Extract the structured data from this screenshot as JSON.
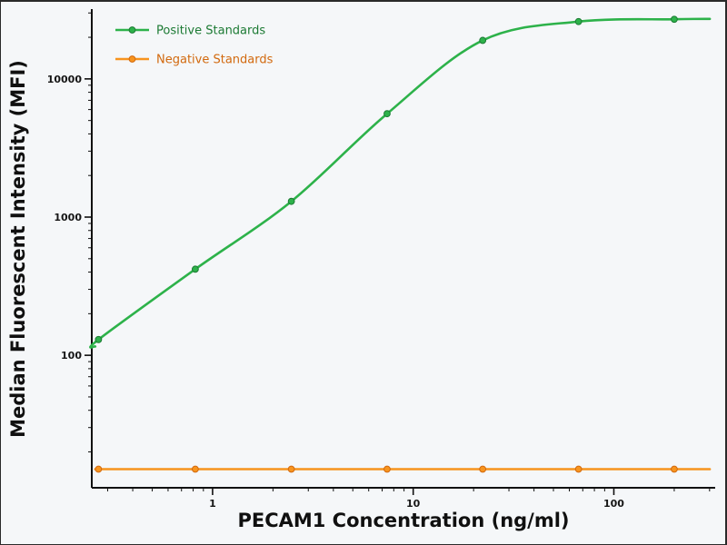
{
  "figure": {
    "background": "#f5f7f9",
    "frame_color": "#1b1b1b",
    "axis_color": "#111111"
  },
  "chart_data": {
    "type": "line",
    "title": "",
    "xlabel": "PECAM1 Concentration (ng/ml)",
    "ylabel": "Median Fluorescent Intensity (MFI)",
    "x_scale": "log",
    "y_scale": "log",
    "x": [
      0.27,
      0.82,
      2.47,
      7.41,
      22.2,
      66.7,
      200
    ],
    "series": [
      {
        "name": "Positive Standards",
        "color": "#2db24a",
        "label_color": "#1c7a34",
        "marker": "circle",
        "values": [
          130,
          420,
          1300,
          5600,
          19000,
          26000,
          27000
        ]
      },
      {
        "name": "Negative Standards",
        "color": "#f7941e",
        "label_color": "#d2690e",
        "marker": "circle",
        "values": [
          15,
          15,
          15,
          15,
          15,
          15,
          15
        ]
      }
    ],
    "xlim": [
      0.25,
      320
    ],
    "ylim": [
      11,
      32000
    ],
    "x_ticks": [
      1,
      10,
      100
    ],
    "y_ticks": [
      100,
      1000,
      10000
    ],
    "legend_position": "top-left",
    "grid": false
  }
}
